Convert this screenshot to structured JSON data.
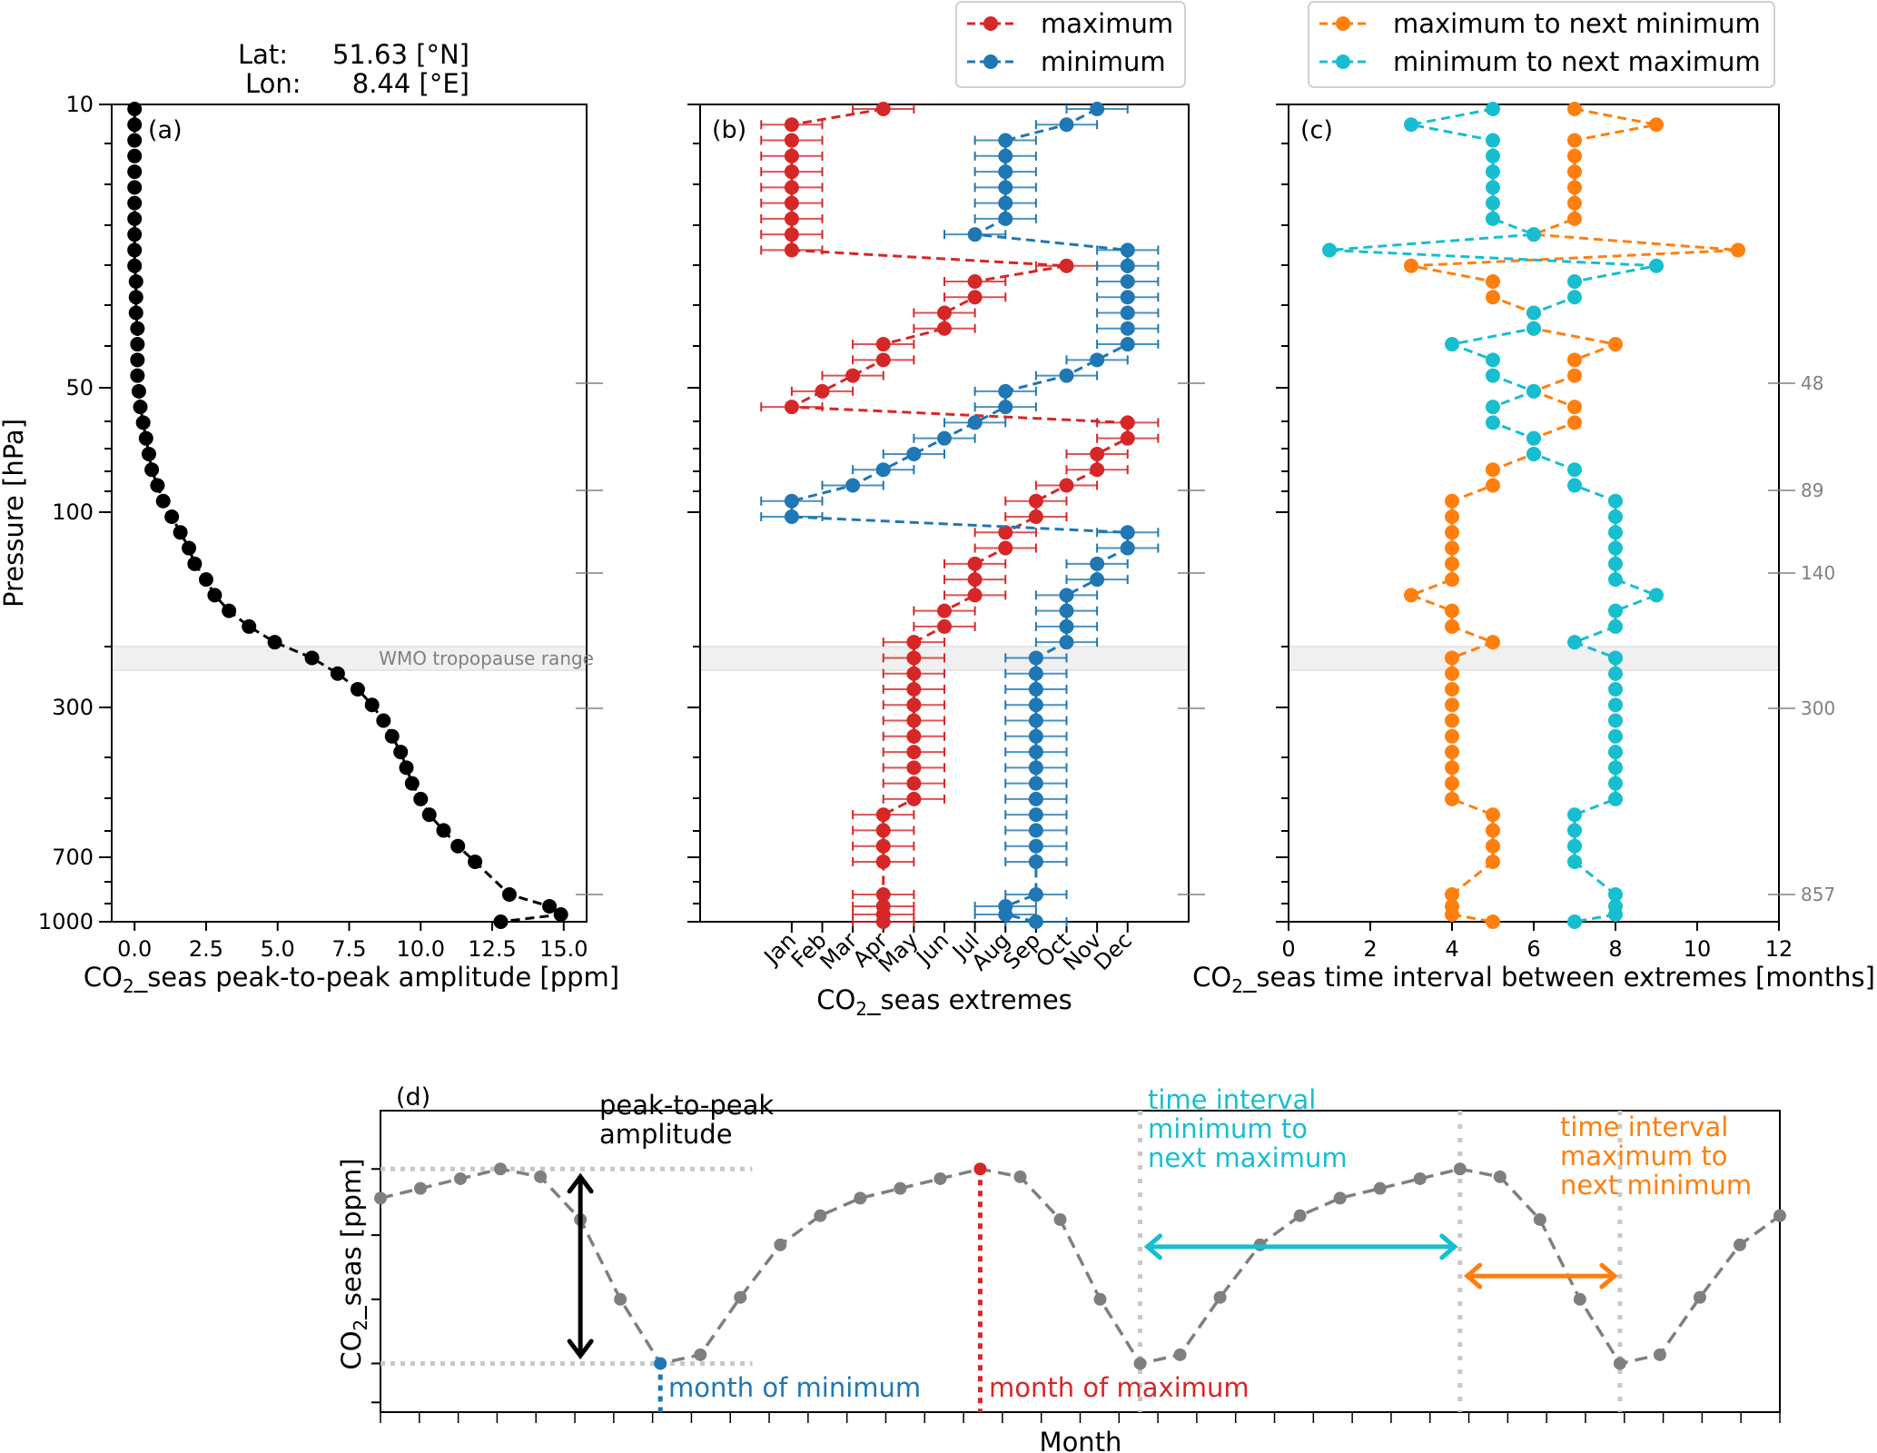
{
  "header": {
    "lat_label": "Lat:",
    "lat_value": "51.63 [°N]",
    "lon_label": "Lon:",
    "lon_value": "8.44 [°E]"
  },
  "colors": {
    "maximum": "#d62728",
    "minimum": "#1f77b4",
    "max_to_min": "#ff7f0e",
    "min_to_max": "#17becf",
    "profile": "#000000",
    "schematic_curve": "#7f7f7f",
    "band": "#f0f0f0",
    "guide": "#c8c8c8"
  },
  "chart_data": [
    {
      "id": "a",
      "type": "line",
      "panel_label": "(a)",
      "title": "",
      "xlabel": "CO2_seas peak-to-peak amplitude [ppm]",
      "ylabel": "Pressure [hPa]",
      "xlim": [
        -0.8,
        15.8
      ],
      "x_ticks": [
        "0.0",
        "2.5",
        "5.0",
        "7.5",
        "10.0",
        "12.5",
        "15.0"
      ],
      "x_tick_values": [
        0,
        2.5,
        5,
        7.5,
        10,
        12.5,
        15
      ],
      "y_ticks": [
        "10",
        "50",
        "100",
        "300",
        "700",
        "1000"
      ],
      "ylim": [
        1000,
        10
      ],
      "grid": false,
      "band_label": "WMO tropopause range",
      "level_index": [
        0,
        1,
        2,
        3,
        4,
        5,
        6,
        7,
        8,
        9,
        10,
        11,
        12,
        13,
        14,
        15,
        16,
        17,
        18,
        19,
        20,
        21,
        22,
        23,
        24,
        25,
        26,
        27,
        28,
        29,
        30,
        31,
        32,
        33,
        34,
        35,
        36,
        37,
        38,
        39,
        40,
        41,
        42,
        43,
        44,
        45,
        46,
        47,
        48,
        49,
        50,
        51,
        52
      ],
      "values": [
        0.0,
        0.0,
        0.0,
        0.0,
        0.0,
        0.0,
        0.0,
        0.0,
        0.0,
        0.0,
        0.0,
        0.05,
        0.05,
        0.05,
        0.1,
        0.1,
        0.1,
        0.1,
        0.15,
        0.2,
        0.3,
        0.4,
        0.5,
        0.6,
        0.8,
        1.0,
        1.3,
        1.6,
        1.9,
        2.1,
        2.5,
        2.8,
        3.3,
        4.0,
        4.9,
        6.2,
        7.1,
        7.8,
        8.3,
        8.7,
        9.0,
        9.3,
        9.5,
        9.7,
        10.0,
        10.3,
        10.8,
        11.3,
        11.9,
        13.1,
        14.5,
        14.9,
        12.8
      ]
    },
    {
      "id": "b",
      "type": "scatter",
      "panel_label": "(b)",
      "xlabel": "CO2_seas extremes",
      "x_ticks": [
        "Jan",
        "Feb",
        "Mar",
        "Apr",
        "May",
        "Jun",
        "Jul",
        "Aug",
        "Sep",
        "Oct",
        "Nov",
        "Dec"
      ],
      "xlim": [
        -2,
        14
      ],
      "error_bar_months": 1,
      "legend": [
        "maximum",
        "minimum"
      ],
      "legend_position": "top-center",
      "series": [
        {
          "name": "maximum",
          "level_index": [
            0,
            1,
            2,
            3,
            4,
            5,
            6,
            7,
            8,
            9,
            10,
            11,
            12,
            13,
            14,
            15,
            16,
            17,
            18,
            19,
            20,
            21,
            22,
            23,
            24,
            25,
            26,
            27,
            28,
            29,
            30,
            31,
            32,
            33,
            34,
            35,
            36,
            37,
            38,
            39,
            40,
            41,
            42,
            43,
            44,
            45,
            46,
            47,
            48,
            49,
            50,
            51,
            52
          ],
          "month": [
            4,
            1,
            1,
            1,
            1,
            1,
            1,
            1,
            1,
            1,
            10,
            7,
            7,
            6,
            6,
            4,
            4,
            3,
            2,
            1,
            12,
            12,
            11,
            11,
            10,
            9,
            9,
            8,
            8,
            7,
            7,
            7,
            6,
            6,
            5,
            5,
            5,
            5,
            5,
            5,
            5,
            5,
            5,
            5,
            5,
            4,
            4,
            4,
            4,
            4,
            4,
            4,
            4
          ]
        },
        {
          "name": "minimum",
          "level_index": [
            0,
            1,
            2,
            3,
            4,
            5,
            6,
            7,
            8,
            9,
            10,
            11,
            12,
            13,
            14,
            15,
            16,
            17,
            18,
            19,
            20,
            21,
            22,
            23,
            24,
            25,
            26,
            27,
            28,
            29,
            30,
            31,
            32,
            33,
            34,
            35,
            36,
            37,
            38,
            39,
            40,
            41,
            42,
            43,
            44,
            45,
            46,
            47,
            48,
            49,
            50,
            51,
            52
          ],
          "month": [
            11,
            10,
            8,
            8,
            8,
            8,
            8,
            8,
            7,
            12,
            12,
            12,
            12,
            12,
            12,
            12,
            11,
            10,
            8,
            8,
            7,
            6,
            5,
            4,
            3,
            1,
            1,
            12,
            12,
            11,
            11,
            10,
            10,
            10,
            10,
            9,
            9,
            9,
            9,
            9,
            9,
            9,
            9,
            9,
            9,
            9,
            9,
            9,
            9,
            9,
            8,
            8,
            9
          ]
        }
      ]
    },
    {
      "id": "c",
      "type": "line",
      "panel_label": "(c)",
      "xlabel": "CO2_seas time interval between extremes [months]",
      "xlim": [
        0,
        12
      ],
      "x_ticks": [
        "0",
        "2",
        "4",
        "6",
        "8",
        "10",
        "12"
      ],
      "x_tick_values": [
        0,
        2,
        4,
        6,
        8,
        10,
        12
      ],
      "right_axis_ticks": [
        "48",
        "89",
        "140",
        "300",
        "857"
      ],
      "legend": [
        "maximum to next minimum",
        "minimum to next maximum"
      ],
      "legend_position": "top-center",
      "series": [
        {
          "name": "maximum to next minimum",
          "level_index": [
            0,
            1,
            2,
            3,
            4,
            5,
            6,
            7,
            8,
            9,
            10,
            11,
            12,
            13,
            14,
            15,
            16,
            17,
            18,
            19,
            20,
            21,
            22,
            23,
            24,
            25,
            26,
            27,
            28,
            29,
            30,
            31,
            32,
            33,
            34,
            35,
            36,
            37,
            38,
            39,
            40,
            41,
            42,
            43,
            44,
            45,
            46,
            47,
            48,
            49,
            50,
            51,
            52
          ],
          "values": [
            7,
            9,
            7,
            7,
            7,
            7,
            7,
            7,
            6,
            11,
            3,
            5,
            5,
            6,
            6,
            8,
            7,
            7,
            6,
            7,
            7,
            6,
            6,
            5,
            5,
            4,
            4,
            4,
            4,
            4,
            4,
            3,
            4,
            4,
            5,
            4,
            4,
            4,
            4,
            4,
            4,
            4,
            4,
            4,
            4,
            5,
            5,
            5,
            5,
            4,
            4,
            4,
            5
          ]
        },
        {
          "name": "minimum to next maximum",
          "level_index": [
            0,
            1,
            2,
            3,
            4,
            5,
            6,
            7,
            8,
            9,
            10,
            11,
            12,
            13,
            14,
            15,
            16,
            17,
            18,
            19,
            20,
            21,
            22,
            23,
            24,
            25,
            26,
            27,
            28,
            29,
            30,
            31,
            32,
            33,
            34,
            35,
            36,
            37,
            38,
            39,
            40,
            41,
            42,
            43,
            44,
            45,
            46,
            47,
            48,
            49,
            50,
            51,
            52
          ],
          "values": [
            5,
            3,
            5,
            5,
            5,
            5,
            5,
            5,
            6,
            1,
            9,
            7,
            7,
            6,
            6,
            4,
            5,
            5,
            6,
            5,
            5,
            6,
            6,
            7,
            7,
            8,
            8,
            8,
            8,
            8,
            8,
            9,
            8,
            8,
            7,
            8,
            8,
            8,
            8,
            8,
            8,
            8,
            8,
            8,
            8,
            7,
            7,
            7,
            7,
            8,
            8,
            8,
            7
          ]
        }
      ]
    },
    {
      "id": "d",
      "type": "line",
      "panel_label": "(d)",
      "xlabel": "Month",
      "ylabel": "CO2_seas [ppm]",
      "x_tick_count": 37,
      "months": [
        0,
        1,
        2,
        3,
        4,
        5,
        6,
        7,
        8,
        9,
        10,
        11,
        12,
        13,
        14,
        15,
        16,
        17,
        18,
        19,
        20,
        21,
        22,
        23,
        24,
        25,
        26,
        27,
        28,
        29,
        30,
        31,
        32,
        33,
        34,
        35
      ],
      "values": [
        0.85,
        0.9,
        0.95,
        1.0,
        0.96,
        0.74,
        0.33,
        0.0,
        0.045,
        0.34,
        0.61,
        0.76,
        0.85,
        0.9,
        0.95,
        1.0,
        0.96,
        0.74,
        0.33,
        0.0,
        0.045,
        0.34,
        0.61,
        0.76,
        0.85,
        0.9,
        0.95,
        1.0,
        0.96,
        0.74,
        0.33,
        0.0,
        0.045,
        0.34,
        0.61,
        0.76
      ],
      "ylim": [
        -0.25,
        1.3
      ],
      "annotations": {
        "amplitude_label_1": "peak-to-peak",
        "amplitude_label_2": "amplitude",
        "amplitude_month": 5,
        "min_month": 7,
        "max_month": 15,
        "month_of_minimum": "month of minimum",
        "month_of_maximum": "month of maximum",
        "interval_min_to_max": {
          "from": 19,
          "to": 27,
          "lines": [
            "time interval",
            "minimum to",
            "next maximum"
          ]
        },
        "interval_max_to_min": {
          "from": 27,
          "to": 31,
          "lines": [
            "time interval",
            "maximum to",
            "next minimum"
          ]
        },
        "guide_months": [
          19,
          27,
          31
        ]
      }
    }
  ]
}
